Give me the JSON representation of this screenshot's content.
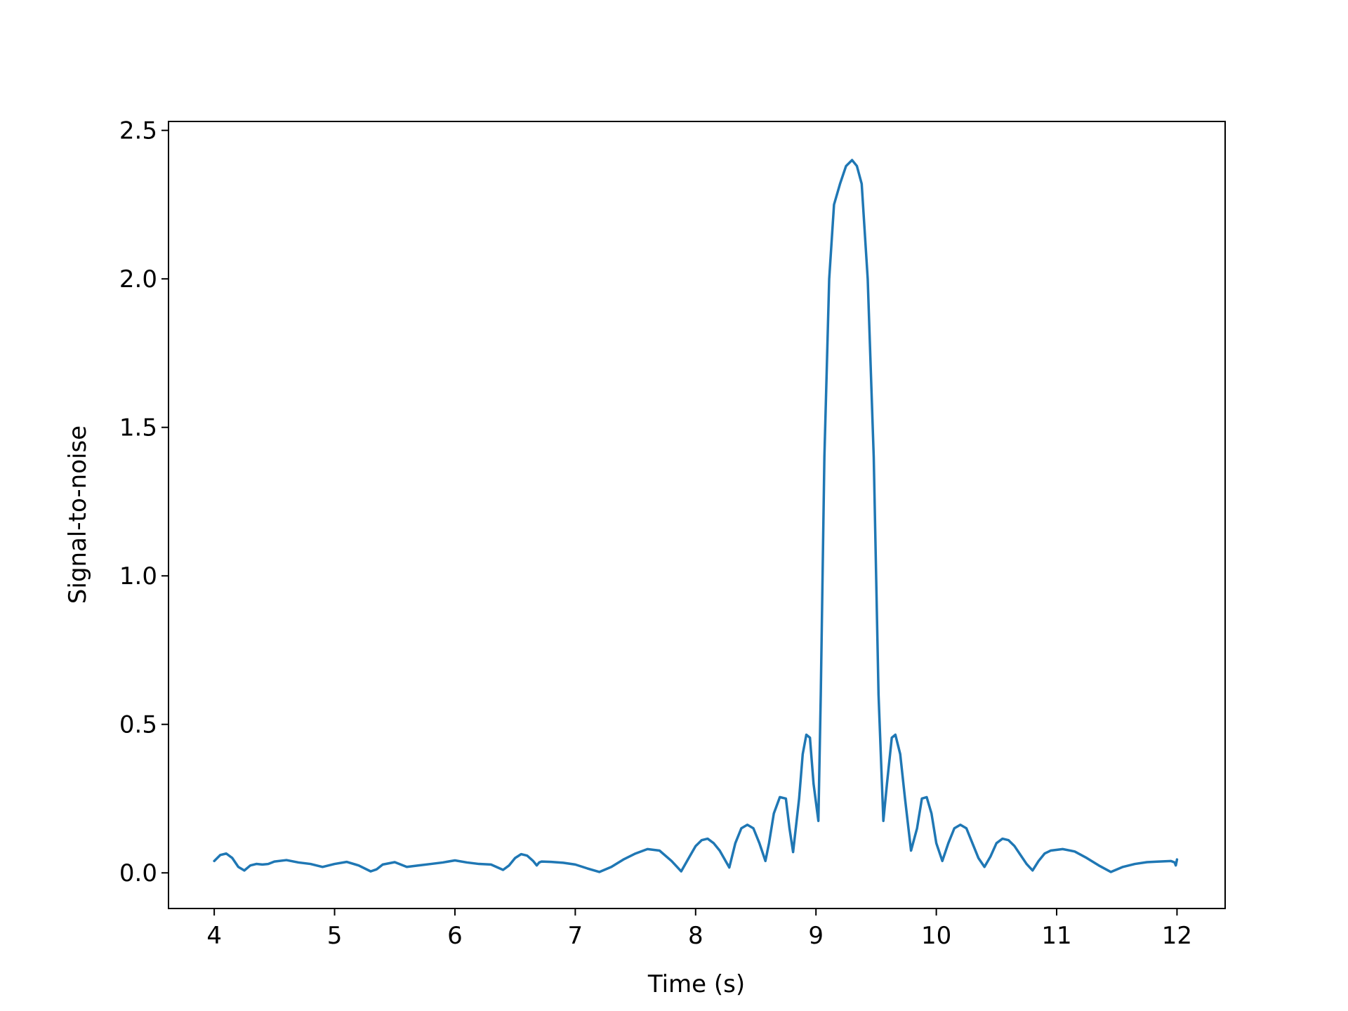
{
  "chart_data": {
    "type": "line",
    "xlabel": "Time (s)",
    "ylabel": "Signal-to-noise",
    "xlim": [
      3.62,
      12.4
    ],
    "ylim": [
      -0.12,
      2.53
    ],
    "xticks": [
      4,
      5,
      6,
      7,
      8,
      9,
      10,
      11,
      12
    ],
    "yticks": [
      0.0,
      0.5,
      1.0,
      1.5,
      2.0,
      2.5
    ],
    "xtick_labels": [
      "4",
      "5",
      "6",
      "7",
      "8",
      "9",
      "10",
      "11",
      "12"
    ],
    "ytick_labels": [
      "0.0",
      "0.5",
      "1.0",
      "1.5",
      "2.0",
      "2.5"
    ],
    "grid": false,
    "legend": "none",
    "color": "#1f77b4",
    "series": [
      {
        "x": [
          4.0,
          4.05,
          4.1,
          4.15,
          4.2,
          4.25,
          4.3,
          4.35,
          4.4,
          4.45,
          4.5,
          4.6,
          4.7,
          4.8,
          4.9,
          5.0,
          5.1,
          5.2,
          5.3,
          5.35,
          5.4,
          5.5,
          5.6,
          5.7,
          5.8,
          5.9,
          6.0,
          6.1,
          6.2,
          6.3,
          6.4,
          6.45,
          6.5,
          6.55,
          6.6,
          6.65,
          6.68,
          6.7,
          6.72,
          6.8,
          6.9,
          7.0,
          7.1,
          7.2,
          7.3,
          7.4,
          7.5,
          7.6,
          7.7,
          7.8,
          7.88,
          7.95,
          8.0,
          8.05,
          8.1,
          8.15,
          8.2,
          8.28,
          8.33,
          8.38,
          8.43,
          8.48,
          8.53,
          8.58,
          8.61,
          8.65,
          8.7,
          8.75,
          8.78,
          8.81,
          8.86,
          8.89,
          8.92,
          8.95,
          8.98,
          9.02,
          9.04,
          9.07,
          9.11,
          9.15,
          9.2,
          9.25,
          9.3,
          9.34,
          9.38,
          9.43,
          9.48,
          9.52,
          9.56,
          9.59,
          9.63,
          9.66,
          9.7,
          9.74,
          9.79,
          9.84,
          9.88,
          9.92,
          9.96,
          10.0,
          10.05,
          10.1,
          10.15,
          10.2,
          10.25,
          10.3,
          10.35,
          10.4,
          10.45,
          10.5,
          10.55,
          10.6,
          10.65,
          10.7,
          10.75,
          10.8,
          10.85,
          10.9,
          10.95,
          11.05,
          11.15,
          11.25,
          11.35,
          11.45,
          11.55,
          11.65,
          11.75,
          11.85,
          11.95,
          11.98,
          11.99,
          12.0
        ],
        "y": [
          0.04,
          0.06,
          0.065,
          0.05,
          0.02,
          0.008,
          0.025,
          0.03,
          0.028,
          0.03,
          0.038,
          0.043,
          0.035,
          0.03,
          0.02,
          0.03,
          0.037,
          0.025,
          0.005,
          0.012,
          0.028,
          0.036,
          0.02,
          0.025,
          0.03,
          0.035,
          0.042,
          0.035,
          0.03,
          0.028,
          0.01,
          0.025,
          0.05,
          0.063,
          0.058,
          0.04,
          0.025,
          0.035,
          0.038,
          0.037,
          0.034,
          0.028,
          0.015,
          0.003,
          0.02,
          0.045,
          0.065,
          0.08,
          0.075,
          0.04,
          0.005,
          0.055,
          0.09,
          0.11,
          0.115,
          0.1,
          0.075,
          0.018,
          0.1,
          0.15,
          0.162,
          0.15,
          0.1,
          0.04,
          0.1,
          0.2,
          0.255,
          0.25,
          0.15,
          0.07,
          0.25,
          0.4,
          0.465,
          0.455,
          0.3,
          0.175,
          0.6,
          1.4,
          2.0,
          2.25,
          2.32,
          2.38,
          2.4,
          2.38,
          2.32,
          2.0,
          1.4,
          0.6,
          0.175,
          0.3,
          0.455,
          0.465,
          0.4,
          0.25,
          0.075,
          0.15,
          0.25,
          0.255,
          0.2,
          0.1,
          0.04,
          0.1,
          0.15,
          0.162,
          0.15,
          0.1,
          0.05,
          0.02,
          0.055,
          0.1,
          0.115,
          0.11,
          0.09,
          0.06,
          0.03,
          0.008,
          0.04,
          0.065,
          0.075,
          0.08,
          0.072,
          0.05,
          0.025,
          0.003,
          0.02,
          0.03,
          0.036,
          0.038,
          0.04,
          0.035,
          0.025,
          0.045
        ]
      }
    ]
  }
}
